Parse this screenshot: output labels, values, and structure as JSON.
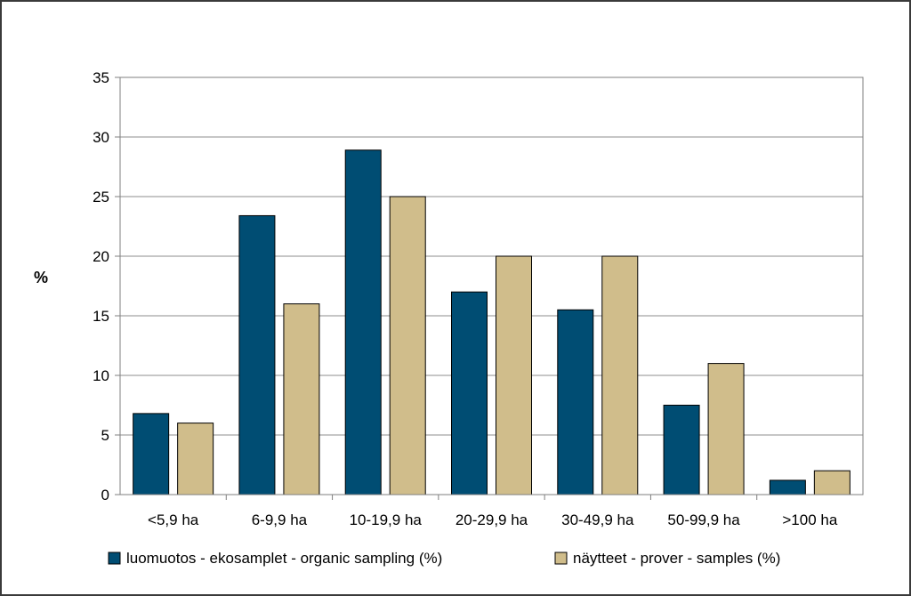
{
  "chart_data": {
    "type": "bar",
    "categories": [
      "<5,9 ha",
      "6-9,9 ha",
      "10-19,9 ha",
      "20-29,9 ha",
      "30-49,9 ha",
      "50-99,9 ha",
      ">100 ha"
    ],
    "series": [
      {
        "name": "luomuotos - ekosamplet - organic sampling (%)",
        "values": [
          6.8,
          23.4,
          28.9,
          17.0,
          15.5,
          7.5,
          1.2
        ],
        "color": "#004d73"
      },
      {
        "name": "näytteet - prover - samples (%)",
        "values": [
          6.0,
          16.0,
          25.0,
          20.0,
          20.0,
          11.0,
          2.0
        ],
        "color": "#d0bd8b"
      }
    ],
    "ylabel": "%",
    "ylim": [
      0,
      35
    ],
    "yticks": [
      0,
      5,
      10,
      15,
      20,
      25,
      30,
      35
    ],
    "grid": true,
    "legend": "bottom"
  }
}
